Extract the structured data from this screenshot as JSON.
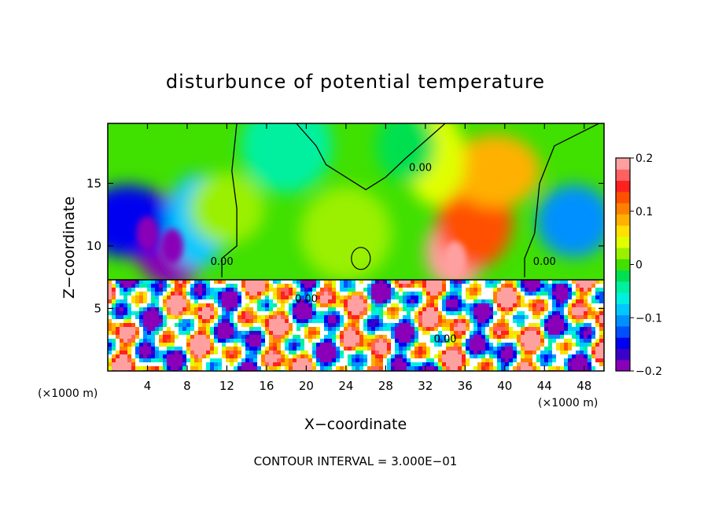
{
  "chart_data": {
    "type": "heatmap",
    "title": "disturbunce of potential temperature",
    "xlabel": "X−coordinate",
    "ylabel": "Z−coordinate",
    "x_unit_left": "(×1000 m)",
    "x_unit_right": "(×1000 m)",
    "footer": "CONTOUR INTERVAL = 3.000E−01",
    "xlim": [
      0,
      50
    ],
    "ylim": [
      0,
      19.8
    ],
    "x_ticks": [
      4,
      8,
      12,
      16,
      20,
      24,
      28,
      32,
      36,
      40,
      44,
      48
    ],
    "y_ticks": [
      5,
      10,
      15
    ],
    "colorbar": {
      "range": [
        -0.2,
        0.2
      ],
      "tick_values": [
        0.2,
        0.1,
        0,
        -0.1,
        -0.2
      ],
      "tick_labels": [
        "0.2",
        "0.1",
        "0",
        "−0.1",
        "−0.2"
      ],
      "colors": [
        "#8a00b8",
        "#3a00c8",
        "#0000f0",
        "#0050ff",
        "#0090ff",
        "#00c8ff",
        "#00f0e0",
        "#00f0a0",
        "#00e050",
        "#40e000",
        "#9af000",
        "#e0ff00",
        "#ffe000",
        "#ffb000",
        "#ff8000",
        "#ff5000",
        "#ff2020",
        "#ff6060",
        "#ffa0a0"
      ]
    },
    "contour_labels": [
      "0.00",
      "0.00",
      "0.00",
      "0.00",
      "0.00"
    ],
    "upper_layer_blobs": [
      {
        "x": 4,
        "z": 11.5,
        "v": -0.2
      },
      {
        "x": 6.5,
        "z": 10.5,
        "v": -0.2
      },
      {
        "x": 2,
        "z": 12,
        "v": -0.14
      },
      {
        "x": 9,
        "z": 12,
        "v": -0.08
      },
      {
        "x": 12,
        "z": 13,
        "v": 0.03
      },
      {
        "x": 24,
        "z": 11,
        "v": 0.02
      },
      {
        "x": 35,
        "z": 9.5,
        "v": 0.2
      },
      {
        "x": 37,
        "z": 12,
        "v": 0.12
      },
      {
        "x": 39,
        "z": 16,
        "v": 0.08
      },
      {
        "x": 33,
        "z": 17,
        "v": 0.05
      },
      {
        "x": 47,
        "z": 12,
        "v": -0.1
      },
      {
        "x": 18,
        "z": 18,
        "v": -0.04
      },
      {
        "x": 30,
        "z": 18,
        "v": -0.03
      }
    ]
  }
}
